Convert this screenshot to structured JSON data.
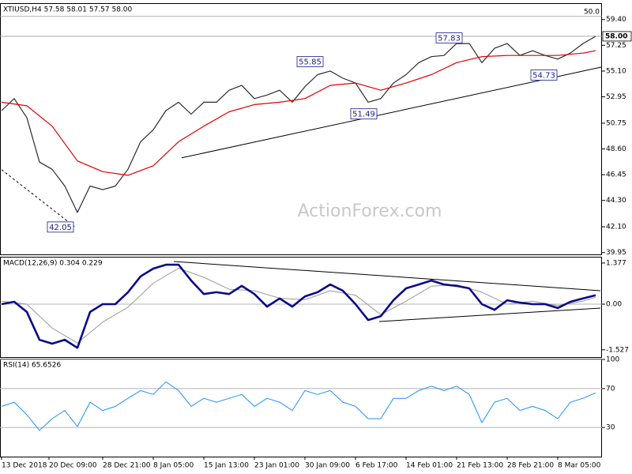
{
  "watermark": "ActionForex.com",
  "chart_data": [
    {
      "type": "line",
      "title": "XTIUSD,H4  57.58 58.01 57.57 58.00",
      "xlim": [
        0,
        190
      ],
      "ylim": [
        39.8,
        60.7
      ],
      "yticks": [
        {
          "value": 59.4,
          "label": "59.40"
        },
        57.25,
        {
          "value": 55.1,
          "label": "55.10"
        },
        52.95,
        50.75,
        {
          "value": 48.6,
          "label": "48.60"
        },
        46.45,
        {
          "value": 44.3,
          "label": "44.30"
        },
        {
          "value": 42.1,
          "label": "42.10"
        },
        39.95
      ],
      "grid": false,
      "series": [
        {
          "color": "#2b2b2b",
          "line_width": 1.2,
          "x": [
            0,
            4,
            8,
            12,
            16,
            20,
            24,
            28,
            32,
            36,
            40,
            44,
            48,
            52,
            56,
            60,
            64,
            68,
            72,
            76,
            80,
            84,
            88,
            92,
            96,
            100,
            104,
            108,
            112,
            116,
            120,
            124,
            128,
            132,
            136,
            140,
            144,
            148,
            152,
            156,
            160,
            164,
            168,
            172,
            176,
            180,
            184,
            188
          ],
          "values": [
            51.8,
            52.8,
            51.2,
            47.5,
            46.9,
            45.5,
            43.3,
            45.5,
            45.2,
            45.5,
            46.9,
            49.2,
            50.2,
            51.8,
            52.5,
            51.5,
            52.5,
            52.5,
            53.5,
            53.9,
            52.8,
            53.1,
            53.5,
            52.5,
            53.8,
            54.8,
            55.1,
            54.5,
            54.1,
            52.5,
            52.8,
            54.1,
            54.8,
            55.8,
            56.3,
            56.4,
            57.4,
            57.4,
            55.8,
            57.0,
            57.4,
            56.4,
            56.8,
            56.4,
            56.1,
            56.6,
            57.4,
            58.0
          ]
        },
        {
          "color": "#e00000",
          "line_width": 1.2,
          "x": [
            0,
            8,
            16,
            24,
            32,
            40,
            48,
            56,
            64,
            72,
            80,
            88,
            96,
            104,
            112,
            120,
            128,
            136,
            144,
            152,
            160,
            168,
            176,
            184,
            188
          ],
          "values": [
            52.5,
            52.2,
            50.5,
            47.6,
            46.7,
            46.4,
            47.2,
            49.2,
            50.5,
            51.7,
            52.3,
            52.5,
            52.8,
            53.9,
            54.1,
            53.5,
            54.1,
            54.8,
            55.8,
            56.3,
            56.4,
            56.4,
            56.4,
            56.6,
            56.8
          ]
        }
      ],
      "hlines": [
        {
          "value": 59.66,
          "label": "50.0"
        },
        {
          "value": 58,
          "label": "58.00",
          "boxed": true
        }
      ],
      "trendlines": [
        {
          "x": [
            57,
            190
          ],
          "y": [
            47.86,
            55.44
          ]
        },
        {
          "x": [
            0,
            23
          ],
          "y": [
            46.87,
            42.13
          ],
          "dashed": true
        }
      ],
      "annotations": [
        {
          "x": 23,
          "y": 42.05
        },
        {
          "x": 102,
          "y": 55.85
        },
        {
          "x": 119,
          "y": 51.49
        },
        {
          "x": 146,
          "y": 57.83
        },
        {
          "x": 176,
          "y": 54.73
        }
      ]
    },
    {
      "type": "line",
      "title": "MACD(12,26,9) 0.304 0.229",
      "xlim": [
        0,
        190
      ],
      "ylim": [
        -1.77,
        1.56
      ],
      "yticks": [
        1.377,
        {
          "value": 0,
          "label": "0.00"
        },
        -1.527
      ],
      "grid": false,
      "series": [
        {
          "color": "#9a9a9a",
          "line_width": 1,
          "x": [
            0,
            8,
            16,
            24,
            32,
            40,
            48,
            56,
            64,
            72,
            80,
            88,
            96,
            104,
            112,
            120,
            128,
            136,
            144,
            152,
            160,
            168,
            176,
            184,
            188
          ],
          "values": [
            0.1,
            0.0,
            -0.8,
            -1.3,
            -0.6,
            -0.1,
            0.7,
            1.2,
            0.9,
            0.5,
            0.45,
            0.2,
            0.15,
            0.45,
            0.3,
            -0.35,
            0.1,
            0.6,
            0.65,
            0.4,
            0.0,
            0.1,
            -0.05,
            0.1,
            0.23
          ]
        },
        {
          "color": "#0a0a8a",
          "line_width": 2.6,
          "x": [
            0,
            4,
            8,
            12,
            16,
            20,
            24,
            28,
            32,
            36,
            40,
            44,
            48,
            52,
            56,
            60,
            64,
            68,
            72,
            76,
            80,
            84,
            88,
            92,
            96,
            100,
            104,
            108,
            112,
            116,
            120,
            124,
            128,
            132,
            136,
            140,
            144,
            148,
            152,
            156,
            160,
            164,
            168,
            172,
            176,
            180,
            184,
            188
          ],
          "values": [
            0,
            0.08,
            -0.26,
            -1.19,
            -1.32,
            -1.19,
            -1.46,
            -0.26,
            0,
            0,
            0.4,
            0.93,
            1.19,
            1.32,
            1.32,
            0.79,
            0.34,
            0.4,
            0.34,
            0.61,
            0.34,
            -0.08,
            0.19,
            -0.08,
            0.26,
            0.4,
            0.66,
            0.45,
            0,
            -0.53,
            -0.4,
            0.13,
            0.53,
            0.66,
            0.79,
            0.66,
            0.61,
            0.53,
            0,
            -0.19,
            0.13,
            0.05,
            0,
            0,
            -0.13,
            0.08,
            0.19,
            0.3
          ]
        }
      ],
      "hlines": [
        {
          "value": 0
        }
      ],
      "trendlines": [
        {
          "x": [
            54.5,
            189.5
          ],
          "y": [
            1.428,
            0.45
          ]
        },
        {
          "x": [
            119.5,
            189.5
          ],
          "y": [
            -0.58,
            -0.13
          ]
        }
      ]
    },
    {
      "type": "line",
      "title": "RSI(14) 65.6526",
      "xlim": [
        0,
        190
      ],
      "ylim": [
        0,
        100
      ],
      "yticks": [
        100,
        70,
        30
      ],
      "grid": true,
      "xticks": [
        {
          "value": 0,
          "label": "13 Dec 2018"
        },
        {
          "value": 15,
          "label": "20 Dec 09:00"
        },
        {
          "value": 32,
          "label": "28 Dec 21:00"
        },
        {
          "value": 48,
          "label": "8 Jan 05:00"
        },
        {
          "value": 64,
          "label": "15 Jan 13:00"
        },
        {
          "value": 80,
          "label": "23 Jan 01:00"
        },
        {
          "value": 96,
          "label": "30 Jan 09:00"
        },
        {
          "value": 112,
          "label": "6 Feb 17:00"
        },
        {
          "value": 128,
          "label": "14 Feb 01:00"
        },
        {
          "value": 144,
          "label": "21 Feb 13:00"
        },
        {
          "value": 160,
          "label": "28 Feb 21:00"
        },
        {
          "value": 176,
          "label": "8 Mar 05:00"
        }
      ],
      "series": [
        {
          "color": "#1e90ff",
          "line_width": 1,
          "x": [
            0,
            4,
            8,
            12,
            16,
            20,
            24,
            28,
            32,
            36,
            40,
            44,
            48,
            52,
            56,
            60,
            64,
            68,
            72,
            76,
            80,
            84,
            88,
            92,
            96,
            100,
            104,
            108,
            112,
            116,
            120,
            124,
            128,
            132,
            136,
            140,
            144,
            148,
            152,
            156,
            160,
            164,
            168,
            172,
            176,
            180,
            184,
            188
          ],
          "values": [
            51.7,
            56,
            43,
            27,
            39,
            47.5,
            31,
            56,
            47.5,
            51.7,
            60,
            68,
            64,
            77,
            68,
            51.7,
            60,
            56,
            60,
            64,
            51.7,
            60,
            56,
            47.5,
            68,
            64,
            68,
            56,
            51.7,
            39,
            39,
            60,
            60,
            68,
            72.5,
            68,
            72.5,
            64,
            35,
            56,
            60,
            47.5,
            51.7,
            47.5,
            39,
            56,
            60,
            65.65
          ]
        }
      ]
    }
  ]
}
